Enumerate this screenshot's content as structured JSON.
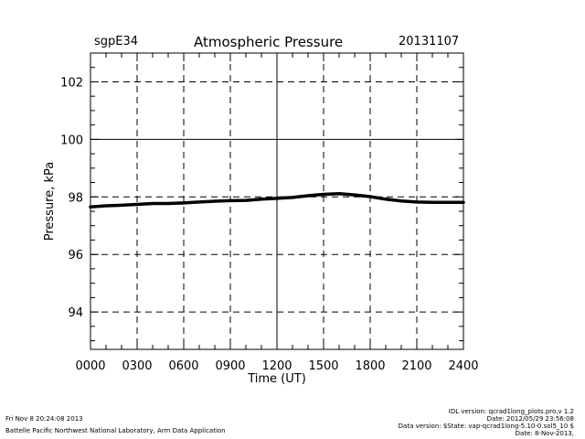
{
  "header": {
    "site": "sgpE34",
    "title": "Atmospheric Pressure",
    "date": "20131107"
  },
  "chart_data": {
    "type": "line",
    "title": "Atmospheric Pressure",
    "xlabel": "Time (UT)",
    "ylabel": "Pressure, kPa",
    "xlim": [
      0,
      2400
    ],
    "ylim": [
      92.7,
      103.0
    ],
    "x_ticks": [
      "0000",
      "0300",
      "0600",
      "0900",
      "1200",
      "1500",
      "1800",
      "2100",
      "2400"
    ],
    "y_ticks": [
      "94",
      "96",
      "98",
      "100",
      "102"
    ],
    "grid": true,
    "series": [
      {
        "color": "#000000",
        "x": [
          0,
          100,
          200,
          300,
          400,
          500,
          600,
          700,
          800,
          900,
          1000,
          1100,
          1200,
          1300,
          1400,
          1500,
          1600,
          1700,
          1800,
          1900,
          2000,
          2100,
          2200,
          2300,
          2400
        ],
        "y": [
          97.65,
          97.69,
          97.71,
          97.74,
          97.77,
          97.77,
          97.79,
          97.82,
          97.85,
          97.87,
          97.88,
          97.92,
          97.95,
          97.98,
          98.04,
          98.09,
          98.11,
          98.07,
          98.01,
          97.92,
          97.86,
          97.82,
          97.81,
          97.81,
          97.81
        ]
      }
    ]
  },
  "footer": {
    "left_line1": "Fri Nov  8 20:24:08 2013",
    "left_line2": "Battelle Pacific Northwest National Laboratory, Arm Data Application",
    "right_line1": "IDL version: qcrad1long_plots.pro,v 1.2",
    "right_line2": "Date: 2012/05/29 23:56:08",
    "right_line3": "Data version: $State: vap-qcrad1long-5.10-0.sol5_10 $",
    "right_line4": "Date: 8-Nov-2013,"
  }
}
